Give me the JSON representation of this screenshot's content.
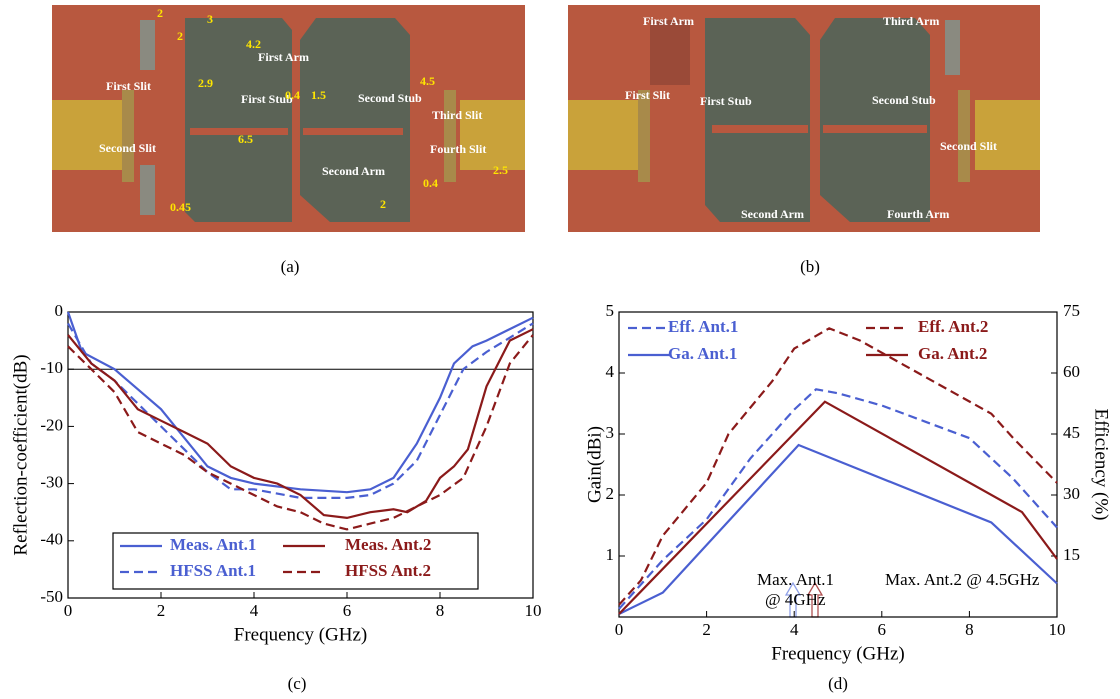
{
  "photos": [
    {
      "caption": "(a)",
      "labels": [
        "2",
        "2",
        "3",
        "4.2",
        "2.9",
        "First Arm",
        "4.5",
        "First Slit",
        "First Stub",
        "0.4",
        "1.5",
        "Second Stub",
        "Third Slit",
        "6.5",
        "Second Slit",
        "Fourth Slit",
        "Second Arm",
        "2.5",
        "0.4",
        "0.45",
        "2"
      ]
    },
    {
      "caption": "(b)",
      "labels": [
        "First Arm",
        "Third Arm",
        "First Slit",
        "First Stub",
        "Second Stub",
        "Second Slit",
        "Second Arm",
        "Fourth Arm"
      ]
    }
  ],
  "chart_data": [
    {
      "type": "line",
      "caption": "(c)",
      "x_label": "Frequency (GHz)",
      "y_label": "Reflection-coefficient(dB)",
      "xlim": [
        0,
        10
      ],
      "ylim": [
        -50,
        0
      ],
      "xticks": [
        0,
        2,
        4,
        6,
        8,
        10
      ],
      "yticks": [
        0,
        -10,
        -20,
        -30,
        -40,
        -50
      ],
      "reference_line": -10,
      "legend": "lower center",
      "series": [
        {
          "name": "Meas. Ant.1",
          "color": "#4a5fd1",
          "linestyle": "solid",
          "x": [
            0,
            0.3,
            1,
            2,
            3,
            3.5,
            4,
            5,
            6,
            6.5,
            7,
            7.5,
            8,
            8.3,
            8.7,
            9,
            10
          ],
          "values": [
            0,
            -7,
            -10,
            -17,
            -27,
            -29,
            -30,
            -31,
            -31.5,
            -31,
            -29,
            -23,
            -15,
            -9,
            -6,
            -5,
            -1
          ]
        },
        {
          "name": "HFSS Ant.1",
          "color": "#4a5fd1",
          "linestyle": "dashed",
          "x": [
            0,
            0.5,
            1,
            2,
            3,
            3.5,
            4,
            5,
            6,
            6.5,
            7,
            7.5,
            8,
            8.5,
            9,
            10
          ],
          "values": [
            -2,
            -9,
            -12,
            -20,
            -28,
            -31,
            -31,
            -32.5,
            -32.5,
            -32,
            -30,
            -26,
            -18,
            -10,
            -7,
            -2
          ]
        },
        {
          "name": "Meas. Ant.2",
          "color": "#8b1a1a",
          "linestyle": "solid",
          "x": [
            0,
            0.5,
            1,
            1.5,
            2,
            2.5,
            3,
            3.5,
            4,
            4.5,
            5,
            5.5,
            6,
            6.5,
            7,
            7.3,
            7.7,
            8,
            8.3,
            8.6,
            9,
            9.5,
            10
          ],
          "values": [
            -4,
            -9,
            -12,
            -17,
            -19,
            -21,
            -23,
            -27,
            -29,
            -30,
            -32,
            -35.5,
            -36,
            -35,
            -34.5,
            -35,
            -33,
            -29,
            -27,
            -24,
            -13,
            -5,
            -3
          ]
        },
        {
          "name": "HFSS Ant.2",
          "color": "#8b1a1a",
          "linestyle": "dashed",
          "x": [
            0,
            0.5,
            1,
            1.5,
            2,
            2.5,
            3,
            3.5,
            4,
            4.5,
            5,
            5.5,
            6,
            6.5,
            7,
            7.5,
            8,
            8.5,
            9,
            9.5,
            10
          ],
          "values": [
            -6,
            -10,
            -14,
            -21,
            -23,
            -25,
            -28,
            -30,
            -32,
            -34,
            -35,
            -37,
            -38,
            -37,
            -36,
            -34,
            -32,
            -29,
            -20,
            -9,
            -4
          ]
        }
      ]
    },
    {
      "type": "line",
      "caption": "(d)",
      "x_label": "Frequency (GHz)",
      "y_label": "Gain(dBi)",
      "y2_label": "Efficiency (%)",
      "xlim": [
        0,
        10
      ],
      "ylim": [
        0,
        5
      ],
      "y2lim": [
        0,
        75
      ],
      "xticks": [
        0,
        2,
        4,
        6,
        8,
        10
      ],
      "yticks": [
        1,
        2,
        3,
        4,
        5
      ],
      "y2ticks": [
        15,
        30,
        45,
        60,
        75
      ],
      "legend": "upper",
      "annotations": [
        "Max. Ant.1",
        "@ 4GHz",
        "Max. Ant.2 @ 4.5GHz"
      ],
      "series": [
        {
          "name": "Eff. Ant.1",
          "color": "#4a5fd1",
          "linestyle": "dashed",
          "axis": "y2",
          "x": [
            0,
            0.5,
            1,
            2,
            3,
            4,
            4.5,
            5,
            6,
            7,
            8,
            9,
            10
          ],
          "values": [
            2,
            8,
            14,
            24,
            39,
            51,
            56,
            55,
            52,
            48,
            44,
            34,
            22
          ]
        },
        {
          "name": "Ga. Ant.1",
          "color": "#4a5fd1",
          "linestyle": "solid",
          "x": [
            0,
            1,
            4.1,
            8.5,
            10
          ],
          "values": [
            0.05,
            0.4,
            2.82,
            1.55,
            0.55
          ]
        },
        {
          "name": "Eff. Ant.2",
          "color": "#8b1a1a",
          "linestyle": "dashed",
          "axis": "y2",
          "x": [
            0,
            0.5,
            1,
            2,
            2.5,
            3.5,
            4,
            4.8,
            5.5,
            6.5,
            7.5,
            8.5,
            9,
            10
          ],
          "values": [
            3,
            9,
            20,
            33,
            45,
            58,
            66,
            71,
            68,
            62,
            56,
            50,
            44,
            33
          ]
        },
        {
          "name": "Ga. Ant.2",
          "color": "#8b1a1a",
          "linestyle": "solid",
          "x": [
            0,
            4.7,
            9.2,
            10
          ],
          "values": [
            0.05,
            3.53,
            1.72,
            0.95
          ]
        }
      ]
    }
  ]
}
